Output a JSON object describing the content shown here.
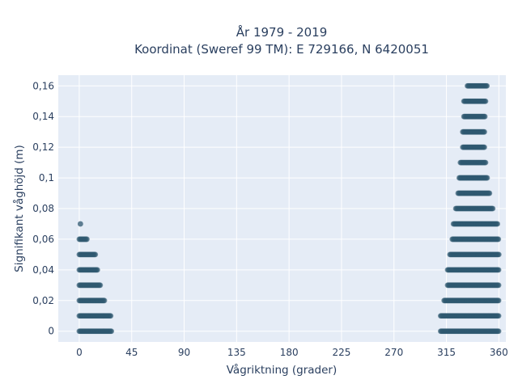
{
  "chart_data": {
    "type": "scatter",
    "title": "År 1979 - 2019",
    "subtitle": "Koordinat (Sweref 99 TM): E 729166, N 6420051",
    "xlabel": "Vågriktning (grader)",
    "ylabel": "Signifikant våghöjd (m)",
    "xlim": [
      -18,
      366
    ],
    "ylim": [
      -0.007,
      0.167
    ],
    "x_ticks": [
      0,
      45,
      90,
      135,
      180,
      225,
      270,
      315,
      360
    ],
    "x_tick_labels": [
      "0",
      "45",
      "90",
      "135",
      "180",
      "225",
      "270",
      "315",
      "360"
    ],
    "y_ticks": [
      0,
      0.02,
      0.04,
      0.06,
      0.08,
      0.1,
      0.12,
      0.14,
      0.16
    ],
    "y_tick_labels": [
      "0",
      "0,02",
      "0,04",
      "0,06",
      "0,08",
      "0,1",
      "0,12",
      "0,14",
      "0,16"
    ],
    "grid": true,
    "legend": false,
    "marker_color": "#2f5870",
    "plot_bg": "#e5ecf6",
    "grid_color": "#ffffff",
    "text_color": "#2a3f5f",
    "series": [
      {
        "bands": [
          {
            "y": 0.0,
            "x_from": 0,
            "x_to": 28
          },
          {
            "y": 0.01,
            "x_from": 0,
            "x_to": 27
          },
          {
            "y": 0.02,
            "x_from": 0,
            "x_to": 22
          },
          {
            "y": 0.03,
            "x_from": 0,
            "x_to": 18
          },
          {
            "y": 0.04,
            "x_from": 0,
            "x_to": 16
          },
          {
            "y": 0.05,
            "x_from": 0,
            "x_to": 14
          },
          {
            "y": 0.06,
            "x_from": 0,
            "x_to": 7
          },
          {
            "y": 0.07,
            "x_from": 1,
            "x_to": 1
          },
          {
            "y": 0.0,
            "x_from": 310,
            "x_to": 360
          },
          {
            "y": 0.01,
            "x_from": 310,
            "x_to": 360
          },
          {
            "y": 0.02,
            "x_from": 313,
            "x_to": 360
          },
          {
            "y": 0.03,
            "x_from": 316,
            "x_to": 360
          },
          {
            "y": 0.04,
            "x_from": 316,
            "x_to": 360
          },
          {
            "y": 0.05,
            "x_from": 318,
            "x_to": 360
          },
          {
            "y": 0.06,
            "x_from": 320,
            "x_to": 360
          },
          {
            "y": 0.07,
            "x_from": 321,
            "x_to": 359
          },
          {
            "y": 0.08,
            "x_from": 323,
            "x_to": 355
          },
          {
            "y": 0.09,
            "x_from": 325,
            "x_to": 352
          },
          {
            "y": 0.1,
            "x_from": 326,
            "x_to": 350
          },
          {
            "y": 0.11,
            "x_from": 327,
            "x_to": 349
          },
          {
            "y": 0.12,
            "x_from": 329,
            "x_to": 348
          },
          {
            "y": 0.13,
            "x_from": 329,
            "x_to": 348
          },
          {
            "y": 0.14,
            "x_from": 330,
            "x_to": 348
          },
          {
            "y": 0.15,
            "x_from": 330,
            "x_to": 349
          },
          {
            "y": 0.16,
            "x_from": 333,
            "x_to": 350
          }
        ]
      }
    ]
  }
}
